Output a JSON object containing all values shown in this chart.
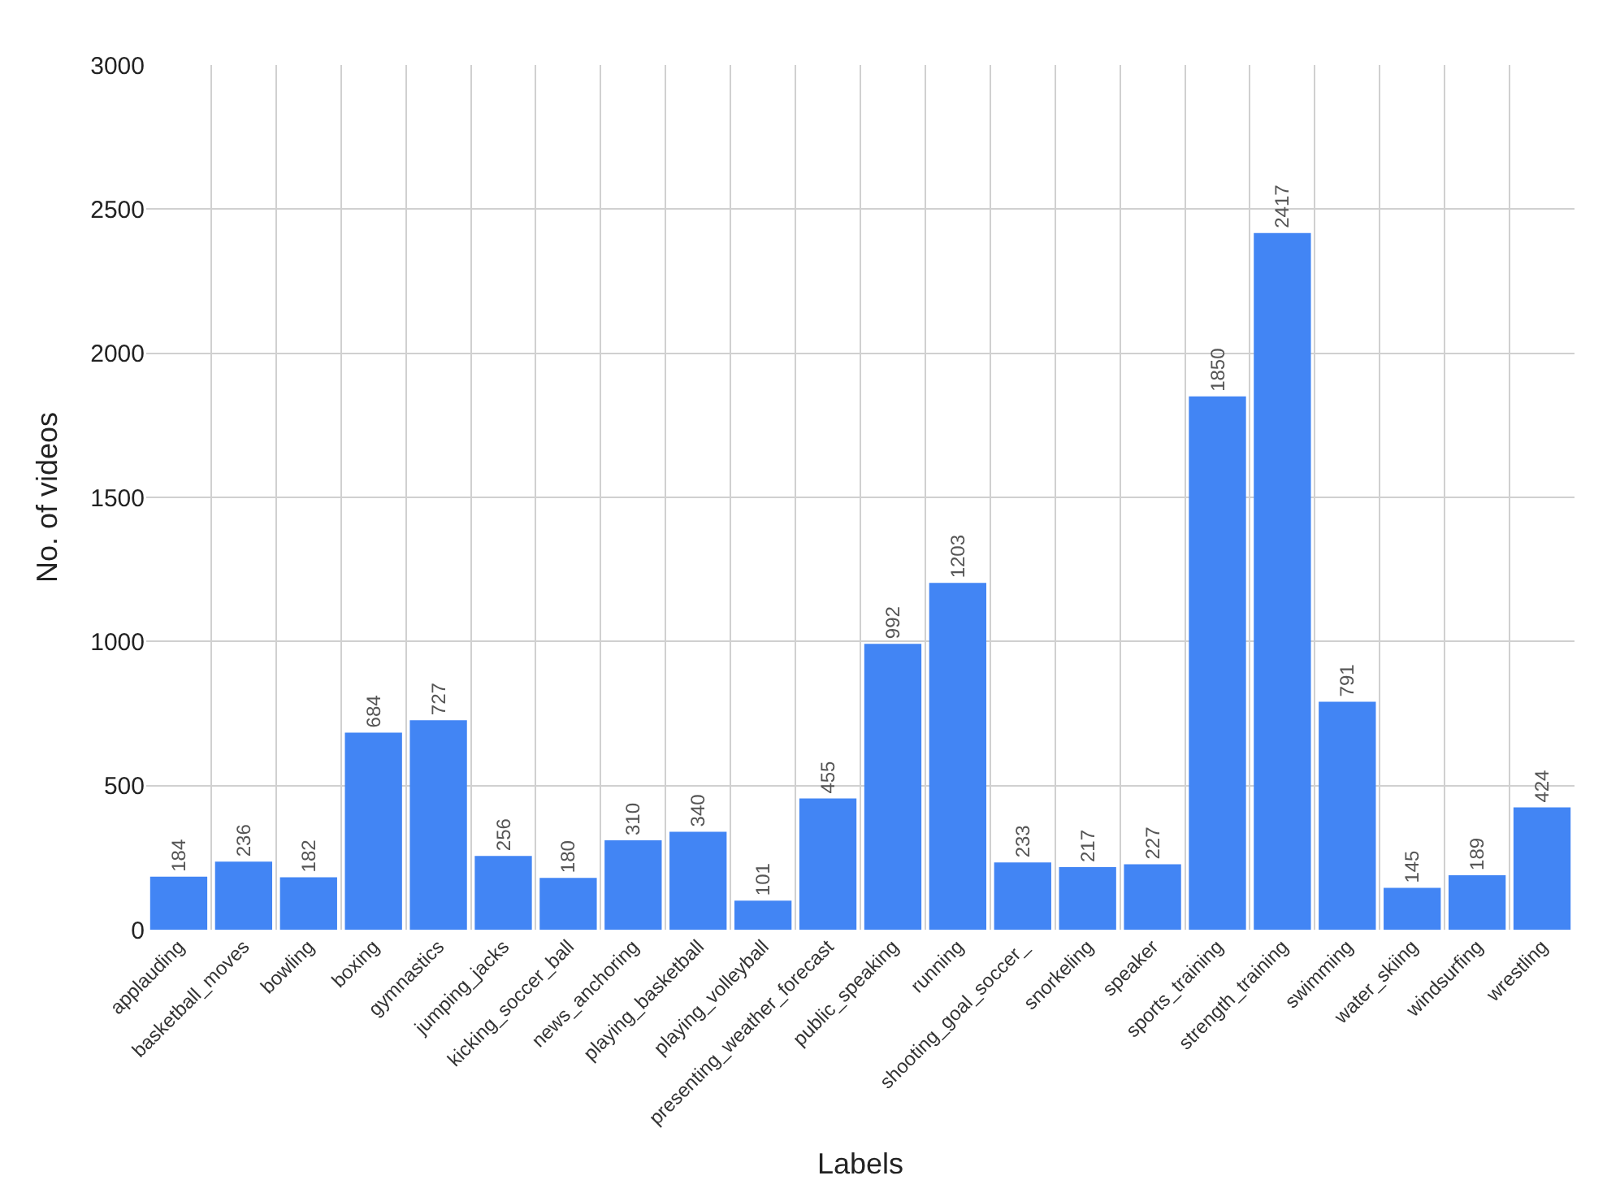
{
  "chart_data": {
    "type": "bar",
    "xlabel": "Labels",
    "ylabel": "No. of videos",
    "categories": [
      "applauding",
      "basketball_moves",
      "bowling",
      "boxing",
      "gymnastics",
      "jumping_jacks",
      "kicking_soccer_ball",
      "news_anchoring",
      "playing_basketball",
      "playing_volleyball",
      "presenting_weather_forecast",
      "public_speaking",
      "running",
      "shooting_goal_soccer_",
      "snorkeling",
      "speaker",
      "sports_training",
      "strength_training",
      "swimming",
      "water_skiing",
      "windsurfing",
      "wrestling"
    ],
    "values": [
      184,
      236,
      182,
      684,
      727,
      256,
      180,
      310,
      340,
      101,
      455,
      992,
      1203,
      233,
      217,
      227,
      1850,
      2417,
      791,
      145,
      189,
      424
    ],
    "color": "#4285f4",
    "ylim": [
      0,
      3000
    ],
    "yticks": [
      0,
      500,
      1000,
      1500,
      2000,
      2500,
      3000
    ],
    "grid": true,
    "data_labels": true
  }
}
